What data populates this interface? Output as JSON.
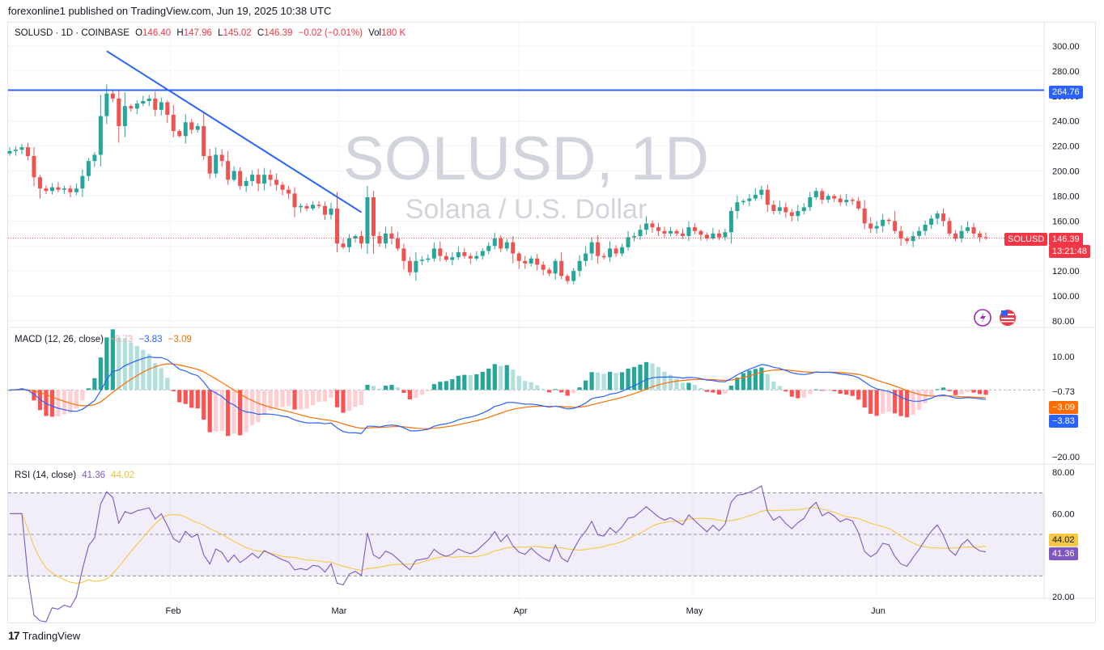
{
  "header": {
    "published": "forexonline1 published on TradingView.com, Jun 19, 2025 10:38 UTC"
  },
  "legend": {
    "symbol": "SOLUSD · 1D · COINBASE",
    "o_label": "O",
    "o": "146.40",
    "h_label": "H",
    "h": "147.96",
    "l_label": "L",
    "l": "145.02",
    "c_label": "C",
    "c": "146.39",
    "change": "−0.02 (−0.01%)",
    "vol_label": "Vol",
    "vol": "180 K"
  },
  "watermark": {
    "line1": "SOLUSD, 1D",
    "line2": "Solana / U.S. Dollar"
  },
  "price_tags": {
    "hline": "264.76",
    "symbol": "SOLUSD",
    "last": "146.39",
    "countdown": "13:21:48"
  },
  "macd_legend": {
    "name": "MACD (12, 26, close)",
    "hist": "−0.73",
    "macd": "−3.83",
    "signal": "−3.09"
  },
  "macd_tags": {
    "hist": "−0.73",
    "signal": "−3.09",
    "macd": "−3.83"
  },
  "rsi_legend": {
    "name": "RSI (14, close)",
    "rsi": "41.36",
    "ma": "44.02"
  },
  "rsi_tags": {
    "ma": "44.02",
    "rsi": "41.36"
  },
  "footer": {
    "brand": "TradingView",
    "logo": "17"
  },
  "colors": {
    "up": "#26a69a",
    "down": "#ef5350",
    "hline": "#2962ff",
    "macd": "#2962ff",
    "signal": "#ff6d00",
    "rsi": "#7e57c2",
    "rsi_ma": "#f5c842"
  },
  "chart_data": [
    {
      "type": "candlestick",
      "title": "SOLUSD, 1D",
      "subtitle": "Solana / U.S. Dollar",
      "x_labels": [
        "Feb",
        "Mar",
        "Apr",
        "May",
        "Jun"
      ],
      "y_ticks": [
        "300.00",
        "280.00",
        "260.00",
        "240.00",
        "220.00",
        "200.00",
        "180.00",
        "160.00",
        "140.00",
        "120.00",
        "100.00",
        "80.00"
      ],
      "ylim": [
        80,
        300
      ],
      "horizontal_line": 264.76,
      "trendline": [
        [
          296,
          "Jan 18"
        ],
        [
          167,
          "Feb 27"
        ]
      ],
      "last_close": 146.39,
      "closes": [
        216,
        217,
        219,
        212,
        195,
        186,
        184,
        187,
        185,
        186,
        183,
        186,
        196,
        208,
        213,
        244,
        262,
        258,
        236,
        252,
        250,
        254,
        256,
        258,
        249,
        255,
        245,
        232,
        228,
        239,
        233,
        236,
        212,
        198,
        213,
        208,
        193,
        200,
        188,
        192,
        197,
        190,
        197,
        193,
        189,
        185,
        182,
        171,
        172,
        170,
        173,
        172,
        165,
        170,
        142,
        139,
        146,
        148,
        142,
        179,
        148,
        142,
        150,
        146,
        138,
        128,
        119,
        128,
        129,
        130,
        138,
        132,
        129,
        131,
        135,
        132,
        130,
        132,
        136,
        140,
        146,
        138,
        143,
        134,
        128,
        126,
        130,
        125,
        121,
        118,
        128,
        116,
        112,
        120,
        128,
        134,
        143,
        132,
        131,
        138,
        134,
        139,
        147,
        148,
        153,
        158,
        155,
        152,
        150,
        152,
        150,
        148,
        155,
        152,
        149,
        146,
        150,
        147,
        151,
        168,
        175,
        176,
        178,
        181,
        185,
        173,
        168,
        171,
        167,
        164,
        168,
        171,
        179,
        184,
        177,
        180,
        178,
        175,
        177,
        176,
        170,
        158,
        154,
        156,
        161,
        160,
        152,
        146,
        144,
        148,
        152,
        157,
        162,
        166,
        160,
        150,
        146,
        152,
        155,
        150,
        147,
        146.39
      ]
    },
    {
      "type": "line",
      "title": "MACD (12, 26, close)",
      "y_ticks": [
        "10.00",
        "−20.00"
      ],
      "ylim": [
        -20,
        10
      ],
      "last_values": {
        "histogram": -0.73,
        "macd": -3.83,
        "signal": -3.09
      }
    },
    {
      "type": "line",
      "title": "RSI (14, close)",
      "y_ticks": [
        "80.00",
        "60.00",
        "20.00"
      ],
      "ylim": [
        20,
        80
      ],
      "bands": [
        30,
        50,
        70
      ],
      "last_values": {
        "rsi": 41.36,
        "rsi_ma": 44.02
      }
    }
  ]
}
